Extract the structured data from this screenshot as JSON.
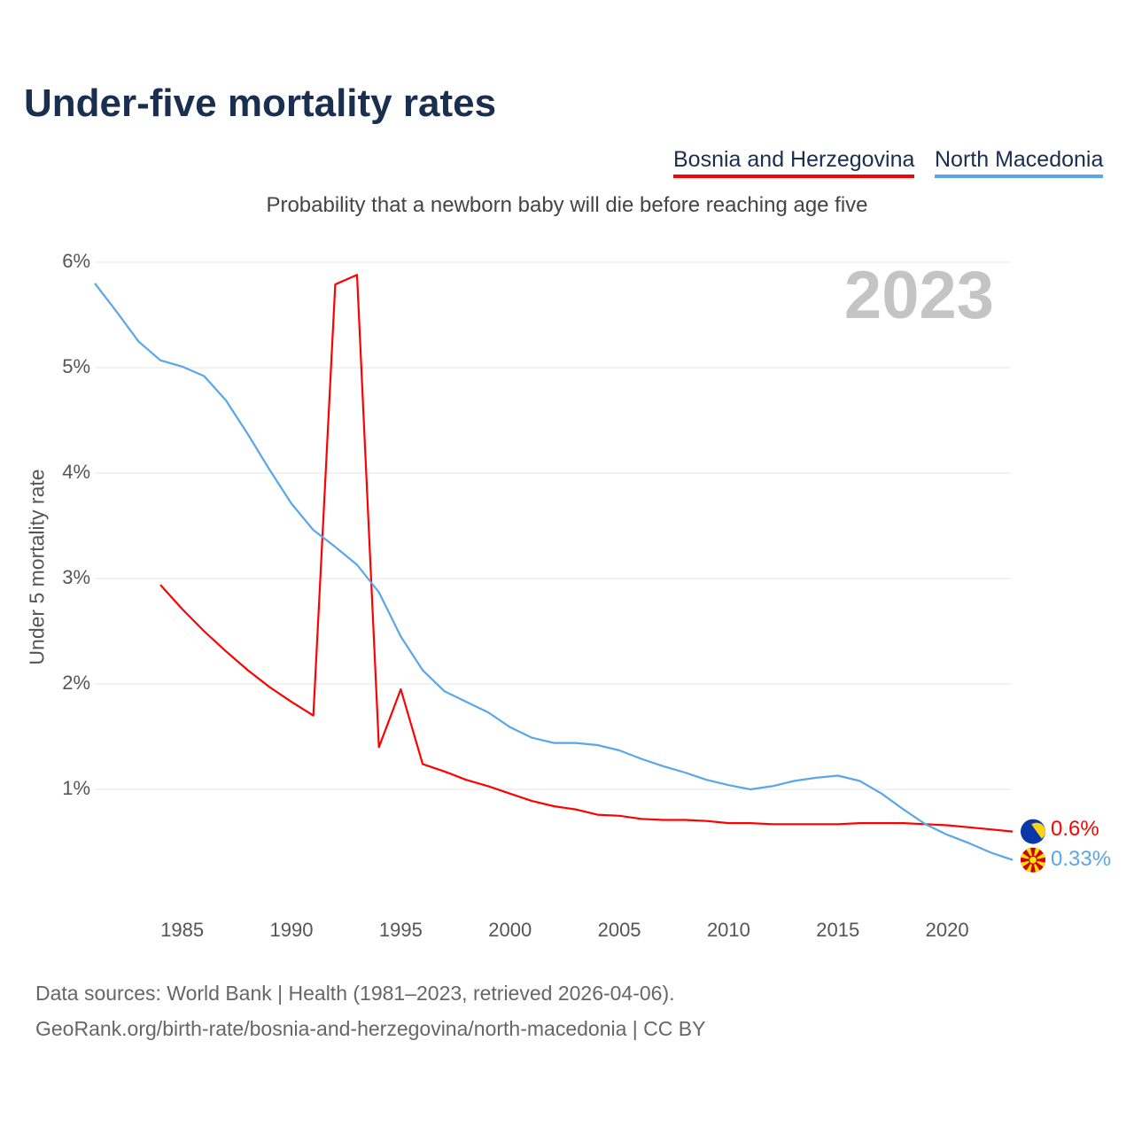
{
  "title": "Under-five mortality rates",
  "legend": [
    "Bosnia and Herzegovina",
    "North Macedonia"
  ],
  "subtitle": "Probability that a newborn baby will die before reaching age five",
  "year_watermark": "2023",
  "end_labels": {
    "bih": "0.6%",
    "mkd": "0.33%"
  },
  "sources": {
    "line1": "Data sources: World Bank | Health (1981–2023, retrieved 2026-04-06).",
    "line2": "GeoRank.org/birth-rate/bosnia-and-herzegovina/north-macedonia | CC BY"
  },
  "colors": {
    "bih": "#ff0000",
    "mkd": "#5aa6ea",
    "grid": "#e6e6e6"
  },
  "chart_data": {
    "type": "line",
    "title": "Under-five mortality rates",
    "xlabel": "",
    "ylabel": "Under 5 mortality rate",
    "xlim": [
      1981,
      2023
    ],
    "ylim": [
      0,
      6
    ],
    "grid": true,
    "legend_position": "top-right",
    "yticks": [
      1,
      2,
      3,
      4,
      5,
      6
    ],
    "ytick_labels": [
      "1%",
      "2%",
      "3%",
      "4%",
      "5%",
      "6%"
    ],
    "xticks": [
      1985,
      1990,
      1995,
      2000,
      2005,
      2010,
      2015,
      2020
    ],
    "xtick_labels": [
      "1985",
      "1990",
      "1995",
      "2000",
      "2005",
      "2010",
      "2015",
      "2020"
    ],
    "series": [
      {
        "name": "Bosnia and Herzegovina",
        "start": 1984,
        "values": [
          2.94,
          2.71,
          2.5,
          2.31,
          2.13,
          1.97,
          1.83,
          1.7,
          5.79,
          5.88,
          1.4,
          1.95,
          1.24,
          1.17,
          1.09,
          1.03,
          0.96,
          0.89,
          0.84,
          0.81,
          0.76,
          0.75,
          0.72,
          0.71,
          0.71,
          0.7,
          0.68,
          0.68,
          0.67,
          0.67,
          0.67,
          0.67,
          0.68,
          0.68,
          0.68,
          0.67,
          0.66,
          0.64,
          0.62,
          0.6
        ]
      },
      {
        "name": "North Macedonia",
        "start": 1981,
        "values": [
          5.8,
          5.53,
          5.25,
          5.07,
          5.01,
          4.92,
          4.69,
          4.37,
          4.03,
          3.71,
          3.46,
          3.3,
          3.13,
          2.87,
          2.45,
          2.13,
          1.93,
          1.83,
          1.73,
          1.59,
          1.49,
          1.44,
          1.44,
          1.42,
          1.37,
          1.29,
          1.22,
          1.16,
          1.09,
          1.04,
          1.0,
          1.03,
          1.08,
          1.11,
          1.13,
          1.08,
          0.96,
          0.81,
          0.67,
          0.57,
          0.49,
          0.4,
          0.33
        ]
      }
    ]
  }
}
